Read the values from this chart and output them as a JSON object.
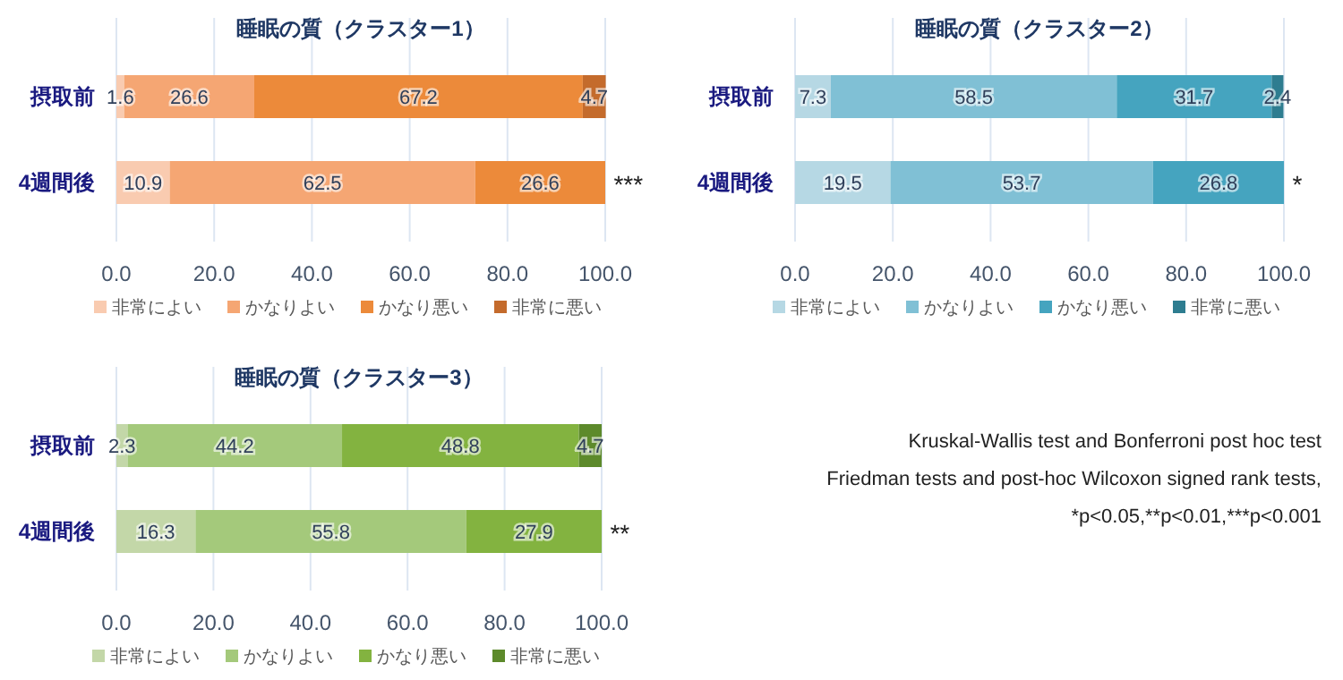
{
  "chart_data": [
    {
      "type": "bar",
      "orientation": "horizontal",
      "stacked": true,
      "title": "睡眠の質（クラスター1）",
      "categories": [
        "摂取前",
        "4週間後"
      ],
      "series": [
        {
          "name": "非常によい",
          "color": "#f9cbb0",
          "values": [
            1.6,
            10.9
          ]
        },
        {
          "name": "かなりよい",
          "color": "#f5a673",
          "values": [
            26.6,
            62.5
          ]
        },
        {
          "name": "かなり悪い",
          "color": "#ec8a3a",
          "values": [
            67.2,
            26.6
          ]
        },
        {
          "name": "非常に悪い",
          "color": "#c46b2c",
          "values": [
            4.7,
            null
          ]
        }
      ],
      "xlim": [
        0,
        100
      ],
      "xticks": [
        {
          "value": 0,
          "label": "0.0"
        },
        {
          "value": 20,
          "label": "20.0"
        },
        {
          "value": 40,
          "label": "40.0"
        },
        {
          "value": 60,
          "label": "60.0"
        },
        {
          "value": 80,
          "label": "80.0"
        },
        {
          "value": 100,
          "label": "100.0"
        }
      ],
      "grid": "x",
      "legend": "bottom",
      "data_labels": true,
      "annotations": [
        "***"
      ]
    },
    {
      "type": "bar",
      "orientation": "horizontal",
      "stacked": true,
      "title": "睡眠の質（クラスター2）",
      "categories": [
        "摂取前",
        "4週間後"
      ],
      "series": [
        {
          "name": "非常によい",
          "color": "#b6d8e4",
          "values": [
            7.3,
            19.5
          ]
        },
        {
          "name": "かなりよい",
          "color": "#80c0d5",
          "values": [
            58.5,
            53.7
          ]
        },
        {
          "name": "かなり悪い",
          "color": "#45a4bf",
          "values": [
            31.7,
            26.8
          ]
        },
        {
          "name": "非常に悪い",
          "color": "#2e7d90",
          "values": [
            2.4,
            null
          ]
        }
      ],
      "xlim": [
        0,
        100
      ],
      "xticks": [
        {
          "value": 0,
          "label": "0.0"
        },
        {
          "value": 20,
          "label": "20.0"
        },
        {
          "value": 40,
          "label": "40.0"
        },
        {
          "value": 60,
          "label": "60.0"
        },
        {
          "value": 80,
          "label": "80.0"
        },
        {
          "value": 100,
          "label": "100.0"
        }
      ],
      "grid": "x",
      "legend": "bottom",
      "data_labels": true,
      "annotations": [
        "*"
      ]
    },
    {
      "type": "bar",
      "orientation": "horizontal",
      "stacked": true,
      "title": "睡眠の質（クラスター3）",
      "categories": [
        "摂取前",
        "4週間後"
      ],
      "series": [
        {
          "name": "非常によい",
          "color": "#c3d7a8",
          "values": [
            2.3,
            16.3
          ]
        },
        {
          "name": "かなりよい",
          "color": "#a4c97b",
          "values": [
            44.2,
            55.8
          ]
        },
        {
          "name": "かなり悪い",
          "color": "#83b340",
          "values": [
            48.8,
            27.9
          ]
        },
        {
          "name": "非常に悪い",
          "color": "#5d8a2b",
          "values": [
            4.7,
            null
          ]
        }
      ],
      "xlim": [
        0,
        100
      ],
      "xticks": [
        {
          "value": 0,
          "label": "0.0"
        },
        {
          "value": 20,
          "label": "20.0"
        },
        {
          "value": 40,
          "label": "40.0"
        },
        {
          "value": 60,
          "label": "60.0"
        },
        {
          "value": 80,
          "label": "80.0"
        },
        {
          "value": 100,
          "label": "100.0"
        }
      ],
      "grid": "x",
      "legend": "bottom",
      "data_labels": true,
      "annotations": [
        "**"
      ]
    },
    {
      "type": "other",
      "annotations": [
        "Kruskal-Wallis test and Bonferroni post hoc test",
        "Friedman tests and post-hoc Wilcoxon signed rank tests,",
        "*p<0.05,**p<0.01,***p<0.001"
      ]
    }
  ]
}
